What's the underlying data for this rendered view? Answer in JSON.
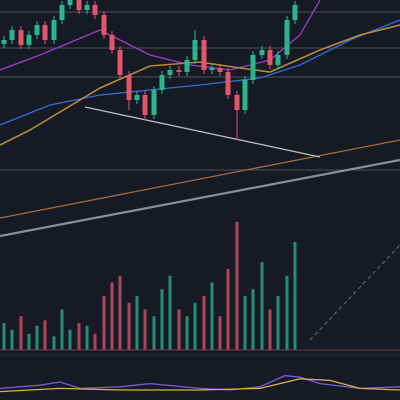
{
  "chart_data": {
    "type": "candlestick",
    "x": [
      4,
      12,
      21,
      29,
      37,
      45,
      54,
      62,
      70,
      79,
      87,
      95,
      104,
      112,
      120,
      129,
      137,
      145,
      154,
      162,
      170,
      179,
      187,
      195,
      204,
      212,
      220,
      228,
      237,
      245,
      253,
      262,
      270,
      278,
      287,
      295
    ],
    "open": [
      78,
      80,
      85,
      77.5,
      82.5,
      87.5,
      80,
      90,
      97.5,
      100,
      95,
      97.5,
      92.5,
      82.5,
      75,
      62.5,
      50,
      52.5,
      42.5,
      55,
      62.5,
      65,
      64,
      70,
      80,
      65,
      66,
      64,
      52.5,
      45,
      60,
      72.5,
      75,
      67.5,
      72.5,
      90
    ],
    "high": [
      82,
      87,
      87,
      84.5,
      89.5,
      89.5,
      92,
      99.5,
      102,
      102,
      99.5,
      99.5,
      94.5,
      84.5,
      77,
      64.5,
      54.5,
      54.5,
      57,
      64.5,
      67,
      67,
      72,
      85,
      82,
      68,
      68,
      66,
      54.5,
      62,
      74.5,
      77,
      77,
      74.5,
      92,
      99.5
    ],
    "low": [
      76,
      78,
      75.5,
      75.5,
      80.5,
      78,
      78,
      88,
      95.5,
      93,
      93,
      90.5,
      80.5,
      73,
      60.5,
      45,
      48,
      40,
      40.5,
      53,
      60.5,
      62,
      62,
      68,
      63,
      63,
      62,
      50.5,
      30,
      43,
      58,
      70.5,
      65.5,
      65.5,
      70.5,
      88
    ],
    "close": [
      80,
      85,
      77.5,
      82.5,
      87.5,
      80,
      90,
      97.5,
      100,
      95,
      97.5,
      92.5,
      82.5,
      75,
      62.5,
      50,
      52.5,
      42.5,
      55,
      62.5,
      65,
      64,
      70,
      80,
      65,
      66,
      64,
      52.5,
      45,
      60,
      72.5,
      75,
      67.5,
      72.5,
      90,
      97.5
    ],
    "up_color": "#2bb58d",
    "down_color": "#e0566a",
    "xlim": [
      0,
      400
    ],
    "ylim": [
      -100,
      100
    ],
    "lines": [
      {
        "color": "#9c3fc9",
        "width": 1.3,
        "x": [
          0,
          40,
          100,
          120,
          150,
          190,
          230,
          270,
          300,
          320
        ],
        "values": [
          65,
          72.5,
          85,
          80,
          72.5,
          67.5,
          65,
          70,
          82.5,
          100
        ]
      },
      {
        "color": "#2f6fd6",
        "width": 1.3,
        "x": [
          0,
          50,
          100,
          150,
          200,
          260,
          300,
          350,
          400
        ],
        "values": [
          37.5,
          47.5,
          52.5,
          55,
          57.5,
          61,
          67.5,
          80,
          90
        ]
      },
      {
        "color": "#b58a3c",
        "width": 1.6,
        "x": [
          0,
          30,
          100,
          150,
          200,
          240,
          270,
          320,
          360,
          400
        ],
        "values": [
          27.5,
          35,
          56,
          67,
          69,
          66,
          64,
          75,
          82.5,
          87.5
        ]
      },
      {
        "color": "#a0703a",
        "width": 1.3,
        "x": [
          0,
          400
        ],
        "values": [
          -9,
          30
        ]
      },
      {
        "color": "#8c8f99",
        "width": 2.2,
        "x": [
          0,
          400
        ],
        "values": [
          -18,
          20
        ]
      },
      {
        "color": "#b9bcc4",
        "width": 1.3,
        "x": [
          85,
          320
        ],
        "values": [
          46.5,
          21.5
        ]
      },
      {
        "color": "#6b6f7a",
        "width": 1,
        "dash": true,
        "x": [
          310,
          400
        ],
        "values": [
          -70,
          -22.5
        ]
      }
    ],
    "hlines": {
      "color": "#4a4e59",
      "values": [
        94,
        76,
        61.5,
        15
      ]
    },
    "volume": {
      "ylim": [
        0,
        100
      ],
      "values": [
        20,
        15,
        25,
        12,
        18,
        22,
        10,
        30,
        15,
        20,
        18,
        12,
        40,
        50,
        55,
        35,
        40,
        30,
        25,
        45,
        55,
        30,
        25,
        35,
        40,
        50,
        25,
        60,
        95,
        40,
        45,
        65,
        30,
        40,
        55,
        80
      ]
    },
    "oscillator": {
      "ylim": [
        0,
        100
      ],
      "series": [
        {
          "color": "#7b5cd6",
          "x": [
            0,
            40,
            60,
            80,
            120,
            150,
            200,
            230,
            260,
            285,
            300,
            320,
            360,
            400
          ],
          "values": [
            30,
            40,
            50,
            30,
            35,
            45,
            30,
            25,
            35,
            70,
            65,
            45,
            30,
            35
          ]
        },
        {
          "color": "#d9b440",
          "x": [
            0,
            60,
            120,
            200,
            260,
            300,
            330,
            360,
            400
          ],
          "values": [
            20,
            30,
            25,
            25,
            30,
            60,
            55,
            30,
            25
          ]
        }
      ]
    }
  }
}
